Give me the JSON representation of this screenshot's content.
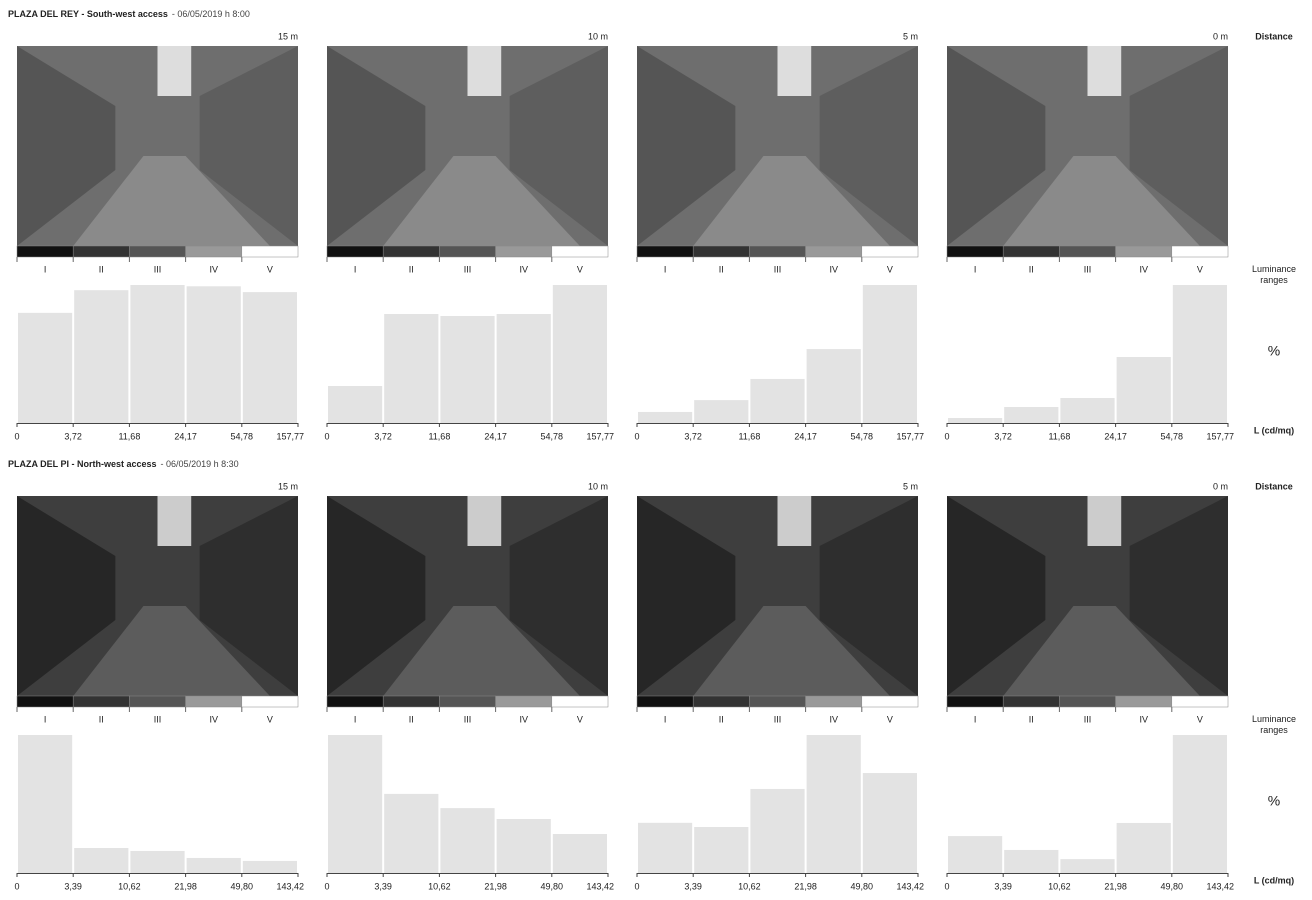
{
  "sections": [
    {
      "title": "PLAZA DEL REY - South-west access",
      "subtitle": "- 06/05/2019 h 8:00",
      "distance_label": "Distance",
      "ranges_label": "Luminance ranges",
      "percent_label": "%",
      "unit_label": "L (cd/mq)"
    },
    {
      "title": "PLAZA DEL PI - North-west access",
      "subtitle": "- 06/05/2019 h 8:30",
      "distance_label": "Distance",
      "ranges_label": "Luminance ranges",
      "percent_label": "%",
      "unit_label": "L (cd/mq)"
    }
  ],
  "chart_data": [
    {
      "type": "bar",
      "distance": "15 m",
      "categories": [
        "I",
        "II",
        "III",
        "IV",
        "V"
      ],
      "x_labels": [
        "0",
        "3,72",
        "11,68",
        "24,17",
        "54,78",
        "157,77"
      ],
      "values": [
        17.0,
        20.5,
        21.3,
        21.1,
        20.2
      ],
      "color": "#e3e3e3"
    },
    {
      "type": "bar",
      "distance": "10 m",
      "categories": [
        "I",
        "II",
        "III",
        "IV",
        "V"
      ],
      "x_labels": [
        "0",
        "3,72",
        "11,68",
        "24,17",
        "54,78",
        "157,77"
      ],
      "values": [
        7.4,
        21.8,
        21.4,
        21.8,
        27.6
      ],
      "color": "#e3e3e3"
    },
    {
      "type": "bar",
      "distance": "5 m",
      "categories": [
        "I",
        "II",
        "III",
        "IV",
        "V"
      ],
      "x_labels": [
        "0",
        "3,72",
        "11,68",
        "24,17",
        "54,78",
        "157,77"
      ],
      "values": [
        3.8,
        7.9,
        15.2,
        25.5,
        47.6
      ],
      "color": "#e3e3e3"
    },
    {
      "type": "bar",
      "distance": "0 m",
      "categories": [
        "I",
        "II",
        "III",
        "IV",
        "V"
      ],
      "x_labels": [
        "0",
        "3,72",
        "11,68",
        "24,17",
        "54,78",
        "157,77"
      ],
      "values": [
        2.0,
        6.4,
        10.0,
        26.4,
        55.2
      ],
      "color": "#e3e3e3"
    },
    {
      "type": "bar",
      "distance": "15 m",
      "categories": [
        "I",
        "II",
        "III",
        "IV",
        "V"
      ],
      "x_labels": [
        "0",
        "3,39",
        "10,62",
        "21,98",
        "49,80",
        "143,42"
      ],
      "values": [
        65.1,
        11.8,
        10.4,
        7.1,
        5.7
      ],
      "color": "#e3e3e3"
    },
    {
      "type": "bar",
      "distance": "10 m",
      "categories": [
        "I",
        "II",
        "III",
        "IV",
        "V"
      ],
      "x_labels": [
        "0",
        "3,39",
        "10,62",
        "21,98",
        "49,80",
        "143,42"
      ],
      "values": [
        36.8,
        21.1,
        17.3,
        14.4,
        10.4
      ],
      "color": "#e3e3e3"
    },
    {
      "type": "bar",
      "distance": "5 m",
      "categories": [
        "I",
        "II",
        "III",
        "IV",
        "V"
      ],
      "x_labels": [
        "0",
        "3,39",
        "10,62",
        "21,98",
        "49,80",
        "143,42"
      ],
      "values": [
        12.0,
        11.0,
        20.1,
        33.0,
        23.9
      ],
      "color": "#e3e3e3"
    },
    {
      "type": "bar",
      "distance": "0 m",
      "categories": [
        "I",
        "II",
        "III",
        "IV",
        "V"
      ],
      "x_labels": [
        "0",
        "3,39",
        "10,62",
        "21,98",
        "49,80",
        "143,42"
      ],
      "values": [
        14.1,
        8.8,
        5.3,
        19.1,
        52.7
      ],
      "color": "#e3e3e3"
    }
  ]
}
